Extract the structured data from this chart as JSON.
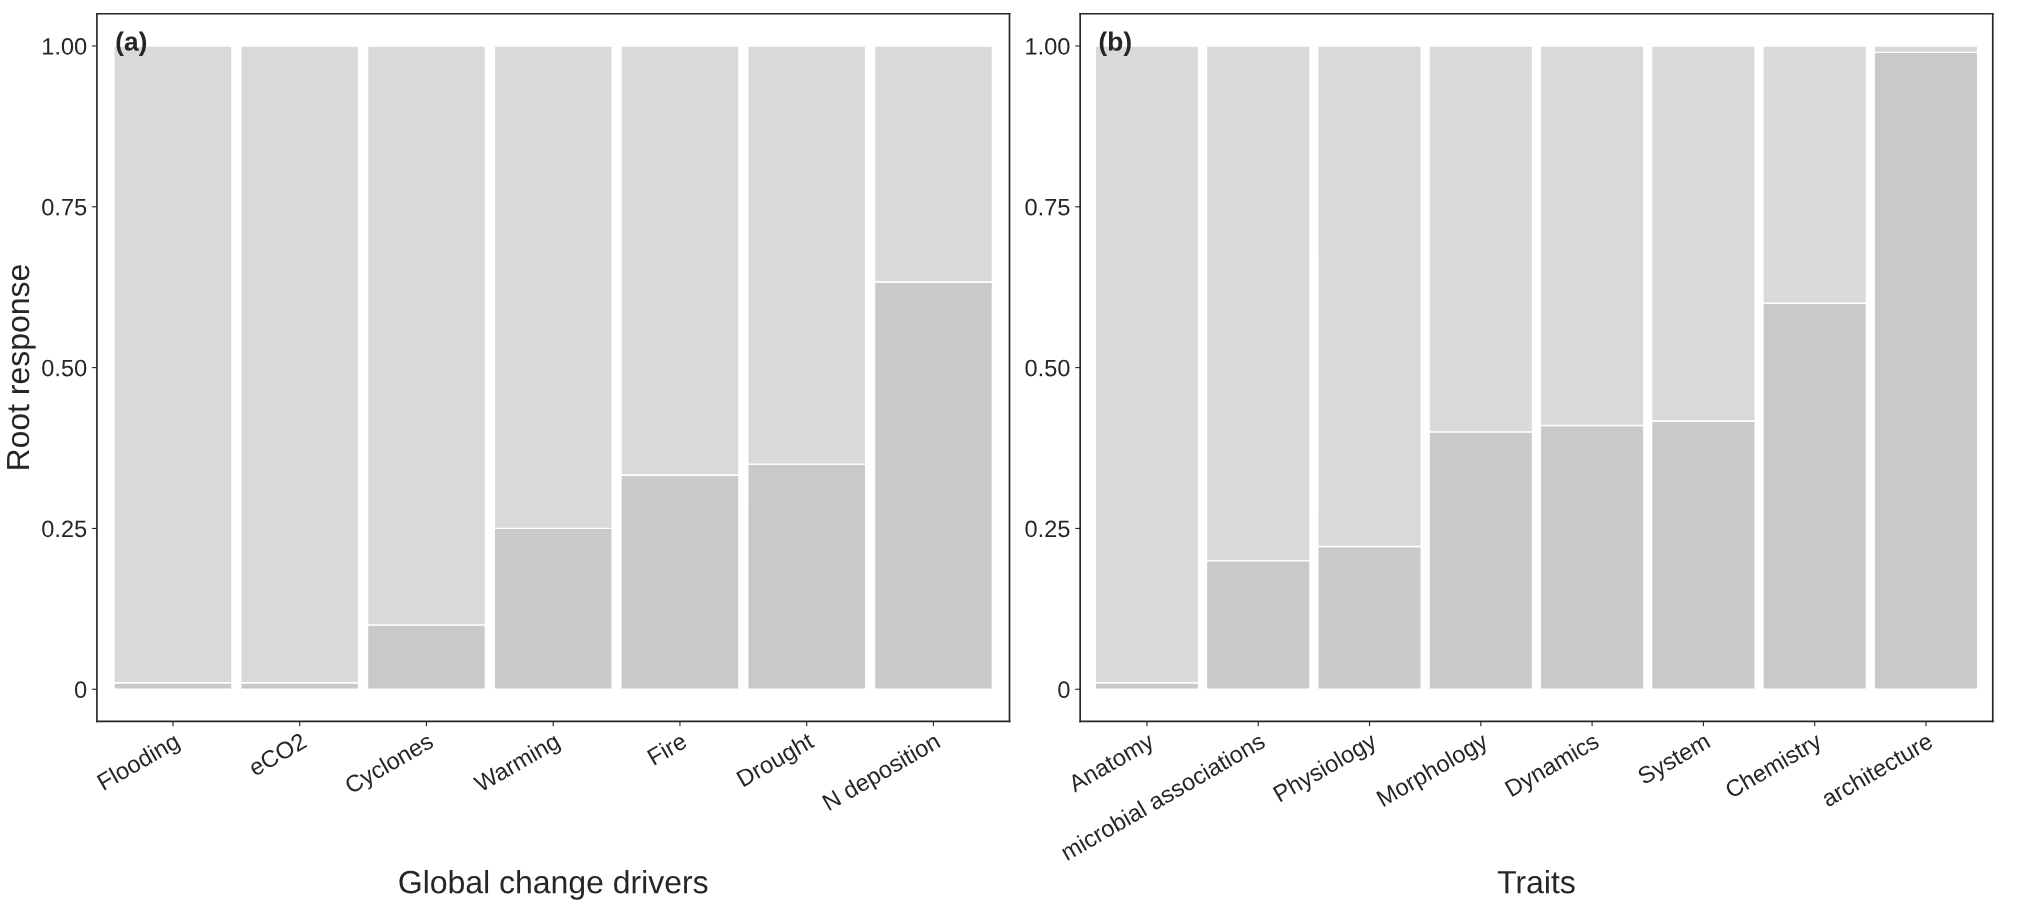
{
  "chart_data": [
    {
      "type": "bar",
      "title": "(a)",
      "xlabel": "Global change drivers",
      "ylabel": "Root response",
      "stacked": true,
      "categories": [
        "Flooding",
        "eCO2",
        "Cyclones",
        "Warming",
        "Fire",
        "Drought",
        "N deposition"
      ],
      "series": [
        {
          "color": "#c9c9c9",
          "values": [
            0.01,
            0.01,
            0.1,
            0.25,
            0.333,
            0.35,
            0.633
          ]
        },
        {
          "color": "#d9d9d9",
          "values": [
            0.99,
            0.99,
            0.9,
            0.75,
            0.667,
            0.65,
            0.367
          ]
        }
      ],
      "ylim": [
        -0.05,
        1.05
      ],
      "yticks": [
        0,
        {
          "value": 0.25,
          "label": "0.25"
        },
        {
          "value": 0.5,
          "label": "0.50"
        },
        {
          "value": 0.75,
          "label": "0.75"
        },
        {
          "value": 1,
          "label": "1.00"
        }
      ],
      "grid": false,
      "legend": false
    },
    {
      "type": "bar",
      "title": "(b)",
      "xlabel": "Traits",
      "stacked": true,
      "categories": [
        "Anatomy",
        "microbial associations",
        "Physiology",
        "Morphology",
        "Dynamics",
        "System",
        "Chemistry",
        "architecture"
      ],
      "series": [
        {
          "color": "#c9c9c9",
          "values": [
            0.01,
            0.2,
            0.222,
            0.4,
            0.41,
            0.417,
            0.6,
            0.99
          ]
        },
        {
          "color": "#d9d9d9",
          "values": [
            0.99,
            0.8,
            0.778,
            0.6,
            0.59,
            0.583,
            0.4,
            0.01
          ]
        }
      ],
      "ylim": [
        -0.05,
        1.05
      ],
      "yticks": [
        0,
        {
          "value": 0.25,
          "label": "0.25"
        },
        {
          "value": 0.5,
          "label": "0.50"
        },
        {
          "value": 0.75,
          "label": "0.75"
        },
        {
          "value": 1,
          "label": "1.00"
        }
      ],
      "grid": false,
      "legend": false
    }
  ]
}
